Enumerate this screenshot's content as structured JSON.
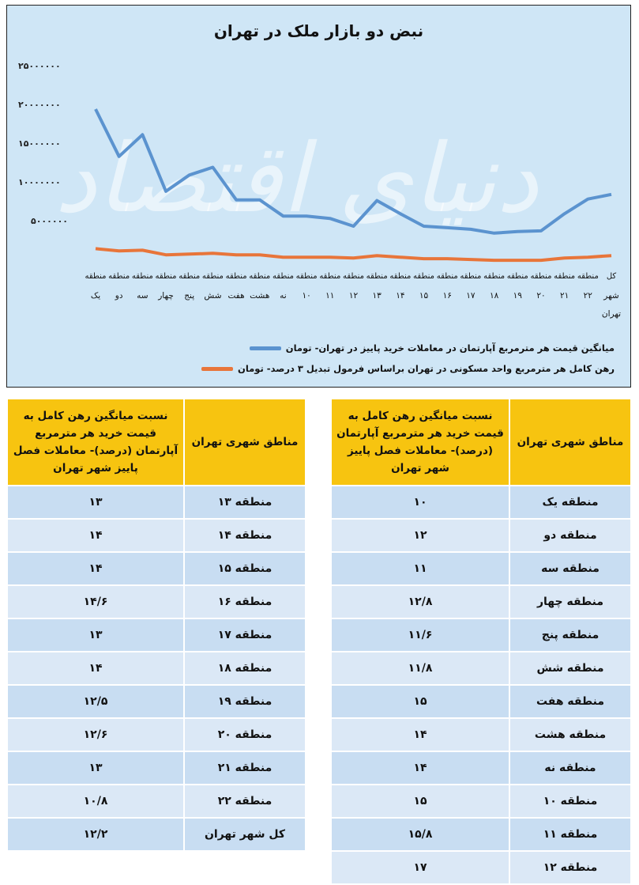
{
  "chart": {
    "title": "نبض دو بازار ملک در تهران",
    "y_ticks": [
      "۲۵۰۰۰۰۰۰",
      "۲۰۰۰۰۰۰۰",
      "۱۵۰۰۰۰۰۰",
      "۱۰۰۰۰۰۰۰",
      "۵۰۰۰۰۰۰"
    ],
    "x_labels": [
      {
        "l1": "منطقه",
        "l2": "یک"
      },
      {
        "l1": "منطقه",
        "l2": "دو"
      },
      {
        "l1": "منطقه",
        "l2": "سه"
      },
      {
        "l1": "منطقه",
        "l2": "چهار"
      },
      {
        "l1": "منطقه",
        "l2": "پنج"
      },
      {
        "l1": "منطقه",
        "l2": "شش"
      },
      {
        "l1": "منطقه",
        "l2": "هفت"
      },
      {
        "l1": "منطقه",
        "l2": "هشت"
      },
      {
        "l1": "منطقه",
        "l2": "نه"
      },
      {
        "l1": "منطقه",
        "l2": "۱۰"
      },
      {
        "l1": "منطقه",
        "l2": "۱۱"
      },
      {
        "l1": "منطقه",
        "l2": "۱۲"
      },
      {
        "l1": "منطقه",
        "l2": "۱۳"
      },
      {
        "l1": "منطقه",
        "l2": "۱۴"
      },
      {
        "l1": "منطقه",
        "l2": "۱۵"
      },
      {
        "l1": "منطقه",
        "l2": "۱۶"
      },
      {
        "l1": "منطقه",
        "l2": "۱۷"
      },
      {
        "l1": "منطقه",
        "l2": "۱۸"
      },
      {
        "l1": "منطقه",
        "l2": "۱۹"
      },
      {
        "l1": "منطقه",
        "l2": "۲۰"
      },
      {
        "l1": "منطقه",
        "l2": "۲۱"
      },
      {
        "l1": "منطقه",
        "l2": "۲۲"
      },
      {
        "l1": "کل",
        "l2": "شهر",
        "l3": "تهران"
      }
    ],
    "legend": [
      {
        "label": "میانگین قیمت هر مترمربع آپارتمان در معاملات خرید پاییز در تهران- تومان",
        "color": "#5b93cf"
      },
      {
        "label": "رهن کامل هر مترمربع واحد مسکونی در تهران براساس فرمول تبدیل ۳ درصد- تومان",
        "color": "#e8753a"
      }
    ],
    "watermark": "دنیای اقتصاد",
    "colors": {
      "background": "#cfe6f6",
      "blue": "#5b93cf",
      "orange": "#e8753a"
    }
  },
  "chart_data": {
    "type": "line",
    "title": "نبض دو بازار ملک در تهران",
    "xlabel": "",
    "ylabel": "",
    "ylim": [
      0,
      25000000
    ],
    "grid": false,
    "legend_position": "bottom",
    "categories": [
      "منطقه یک",
      "منطقه دو",
      "منطقه سه",
      "منطقه چهار",
      "منطقه پنج",
      "منطقه شش",
      "منطقه هفت",
      "منطقه هشت",
      "منطقه نه",
      "منطقه ۱۰",
      "منطقه ۱۱",
      "منطقه ۱۲",
      "منطقه ۱۳",
      "منطقه ۱۴",
      "منطقه ۱۵",
      "منطقه ۱۶",
      "منطقه ۱۷",
      "منطقه ۱۸",
      "منطقه ۱۹",
      "منطقه ۲۰",
      "منطقه ۲۱",
      "منطقه ۲۲",
      "کل شهر تهران"
    ],
    "series": [
      {
        "name": "میانگین قیمت هر مترمربع آپارتمان در معاملات خرید پاییز در تهران- تومان",
        "values": [
          20000000,
          13900000,
          16700000,
          9400000,
          11500000,
          12500000,
          8300000,
          8300000,
          6200000,
          6200000,
          5900000,
          4900000,
          8200000,
          6500000,
          4900000,
          4700000,
          4500000,
          4000000,
          4200000,
          4300000,
          6500000,
          8400000,
          9000000
        ]
      },
      {
        "name": "رهن کامل هر مترمربع واحد مسکونی در تهران براساس فرمول تبدیل ۳ درصد- تومان",
        "values": [
          2000000,
          1700000,
          1800000,
          1200000,
          1300000,
          1400000,
          1200000,
          1200000,
          900000,
          900000,
          900000,
          800000,
          1100000,
          900000,
          700000,
          700000,
          600000,
          500000,
          500000,
          500000,
          800000,
          900000,
          1100000
        ]
      }
    ]
  },
  "table_left": {
    "headers": [
      "مناطق شهری تهران",
      "نسبت میانگین رهن کامل به قیمت خرید هر مترمربع آپارتمان (درصد)- معاملات فصل پاییز شهر تهران"
    ],
    "rows": [
      {
        "region": "منطقه ۱۳",
        "value": "۱۳"
      },
      {
        "region": "منطقه ۱۴",
        "value": "۱۴"
      },
      {
        "region": "منطقه ۱۵",
        "value": "۱۴"
      },
      {
        "region": "منطقه ۱۶",
        "value": "۱۴/۶"
      },
      {
        "region": "منطقه ۱۷",
        "value": "۱۳"
      },
      {
        "region": "منطقه ۱۸",
        "value": "۱۴"
      },
      {
        "region": "منطقه ۱۹",
        "value": "۱۲/۵"
      },
      {
        "region": "منطقه ۲۰",
        "value": "۱۲/۶"
      },
      {
        "region": "منطقه ۲۱",
        "value": "۱۳"
      },
      {
        "region": "منطقه ۲۲",
        "value": "۱۰/۸"
      },
      {
        "region": "کل شهر تهران",
        "value": "۱۲/۲"
      }
    ]
  },
  "table_right": {
    "headers": [
      "مناطق شهری تهران",
      "نسبت میانگین رهن کامل به قیمت خرید هر مترمربع آپارتمان (درصد)- معاملات فصل پاییز شهر تهران"
    ],
    "rows": [
      {
        "region": "منطقه یک",
        "value": "۱۰"
      },
      {
        "region": "منطقه دو",
        "value": "۱۲"
      },
      {
        "region": "منطقه سه",
        "value": "۱۱"
      },
      {
        "region": "منطقه چهار",
        "value": "۱۲/۸"
      },
      {
        "region": "منطقه پنج",
        "value": "۱۱/۶"
      },
      {
        "region": "منطقه شش",
        "value": "۱۱/۸"
      },
      {
        "region": "منطقه هفت",
        "value": "۱۵"
      },
      {
        "region": "منطقه هشت",
        "value": "۱۴"
      },
      {
        "region": "منطقه نه",
        "value": "۱۴"
      },
      {
        "region": "منطقه ۱۰",
        "value": "۱۵"
      },
      {
        "region": "منطقه ۱۱",
        "value": "۱۵/۸"
      },
      {
        "region": "منطقه ۱۲",
        "value": "۱۷"
      }
    ]
  }
}
